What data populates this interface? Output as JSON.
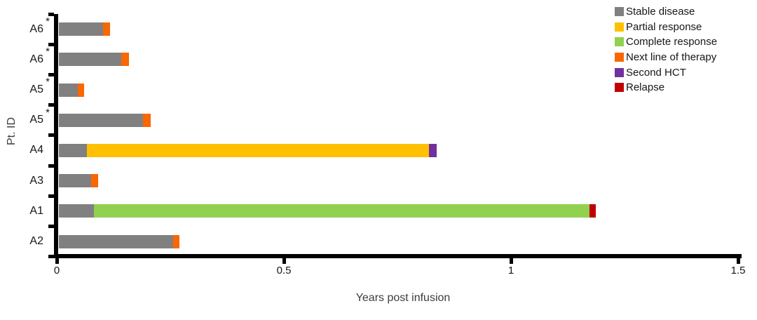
{
  "chart_data": {
    "type": "bar",
    "orientation": "horizontal-stacked",
    "title": "",
    "xlabel": "Years post infusion",
    "ylabel": "Pt. ID",
    "xlim": [
      0,
      1.5
    ],
    "xticks": [
      0,
      0.5,
      1,
      1.5
    ],
    "xtick_labels": [
      "0",
      "0.5",
      "1",
      "1.5"
    ],
    "grid": false,
    "legend_position": "top-right",
    "legend": [
      {
        "label": "Stable disease",
        "color": "#808080"
      },
      {
        "label": "Partial response",
        "color": "#FFC000"
      },
      {
        "label": "Complete response",
        "color": "#92D050"
      },
      {
        "label": "Next line of therapy",
        "color": "#F96702"
      },
      {
        "label": "Second HCT",
        "color": "#7030A0"
      },
      {
        "label": "Relapse",
        "color": "#C00000"
      }
    ],
    "star_note": "*",
    "rows": [
      {
        "label": "A6",
        "starred": true,
        "segments": [
          {
            "name": "Stable disease",
            "value": 0.097
          },
          {
            "name": "Next line of therapy",
            "value": 0.016
          }
        ]
      },
      {
        "label": "A6",
        "starred": true,
        "segments": [
          {
            "name": "Stable disease",
            "value": 0.137
          },
          {
            "name": "Next line of therapy",
            "value": 0.017
          }
        ]
      },
      {
        "label": "A5",
        "starred": true,
        "segments": [
          {
            "name": "Stable disease",
            "value": 0.042
          },
          {
            "name": "Next line of therapy",
            "value": 0.014
          }
        ]
      },
      {
        "label": "A5",
        "starred": true,
        "segments": [
          {
            "name": "Stable disease",
            "value": 0.185
          },
          {
            "name": "Next line of therapy",
            "value": 0.017
          }
        ]
      },
      {
        "label": "A4",
        "starred": false,
        "segments": [
          {
            "name": "Stable disease",
            "value": 0.062
          },
          {
            "name": "Partial response",
            "value": 0.753
          },
          {
            "name": "Second HCT",
            "value": 0.017
          }
        ]
      },
      {
        "label": "A3",
        "starred": false,
        "segments": [
          {
            "name": "Stable disease",
            "value": 0.071
          },
          {
            "name": "Next line of therapy",
            "value": 0.015
          }
        ]
      },
      {
        "label": "A1",
        "starred": false,
        "segments": [
          {
            "name": "Stable disease",
            "value": 0.077
          },
          {
            "name": "Complete response",
            "value": 1.091
          },
          {
            "name": "Relapse",
            "value": 0.014
          }
        ]
      },
      {
        "label": "A2",
        "starred": false,
        "segments": [
          {
            "name": "Stable disease",
            "value": 0.252
          },
          {
            "name": "Next line of therapy",
            "value": 0.013
          }
        ]
      }
    ]
  }
}
